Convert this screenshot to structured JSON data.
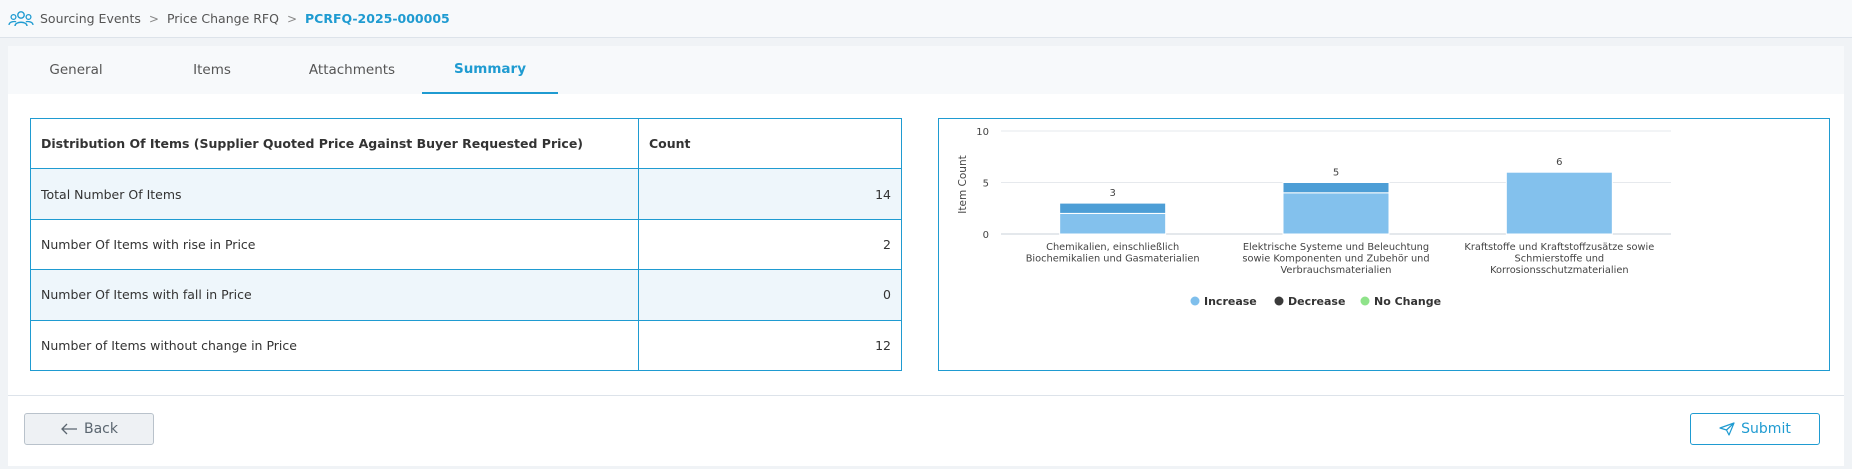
{
  "breadcrumb": {
    "icon": "users-icon",
    "items": [
      "Sourcing Events",
      "Price Change RFQ",
      "PCRFQ-2025-000005"
    ]
  },
  "tabs": [
    {
      "label": "General"
    },
    {
      "label": "Items"
    },
    {
      "label": "Attachments"
    },
    {
      "label": "Summary",
      "active": true
    }
  ],
  "table": {
    "headers": [
      "Distribution Of Items (Supplier Quoted Price Against Buyer Requested Price)",
      "Count"
    ],
    "rows": [
      {
        "label": "Total Number Of Items",
        "count": "14"
      },
      {
        "label": "Number Of Items with rise in Price",
        "count": "2"
      },
      {
        "label": "Number Of Items with fall in Price",
        "count": "0"
      },
      {
        "label": "Number of Items without change in Price",
        "count": "12"
      }
    ]
  },
  "chart_data": {
    "type": "bar",
    "stacked": true,
    "ylabel": "Item Count",
    "ylim": [
      0,
      10
    ],
    "yticks": [
      "0",
      "5",
      "10"
    ],
    "categories": [
      [
        "Chemikalien, einschließlich",
        "Biochemikalien und Gasmaterialien"
      ],
      [
        "Elektrische Systeme und Beleuchtung",
        "sowie Komponenten und Zubehör und",
        "Verbrauchsmaterialien"
      ],
      [
        "Kraftstoffe und Kraftstoffzusätze sowie",
        "Schmierstoffe und",
        "Korrosionsschutzmaterialien"
      ]
    ],
    "series": [
      {
        "name": "Increase",
        "color": "#7fbfec",
        "values": [
          1,
          1,
          0
        ]
      },
      {
        "name": "Decrease",
        "color": "#3a3a3a",
        "values": [
          0,
          0,
          0
        ]
      },
      {
        "name": "No Change",
        "color": "#8fe38a",
        "values": [
          2,
          4,
          6
        ]
      }
    ],
    "totals": [
      "3",
      "5",
      "6"
    ],
    "legend_position": "bottom",
    "grid": true
  },
  "footer": {
    "back_label": "Back",
    "submit_label": "Submit"
  }
}
